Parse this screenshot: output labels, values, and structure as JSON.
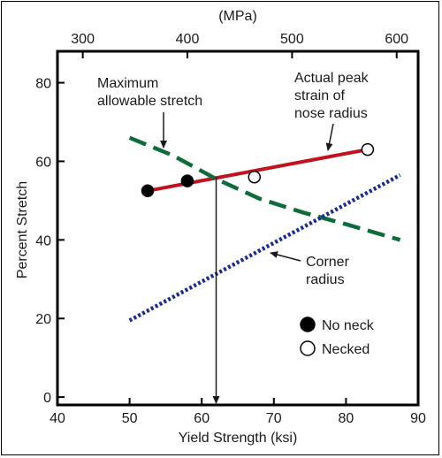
{
  "chart_data": {
    "type": "line",
    "title": "",
    "xlabel": "Yield Strength (ksi)",
    "ylabel": "Percent Stretch",
    "x2label": "(MPa)",
    "xlim": [
      40,
      90
    ],
    "ylim": [
      -2,
      88
    ],
    "x2lim": [
      275.8,
      620.5
    ],
    "xticks": [
      40,
      50,
      60,
      70,
      80,
      90
    ],
    "yticks": [
      0,
      20,
      40,
      60,
      80
    ],
    "x2ticks": [
      300,
      400,
      500,
      600
    ],
    "series": [
      {
        "name": "Actual peak strain of nose radius",
        "color": "#c0121f",
        "style": "solid",
        "x": [
          52.5,
          83
        ],
        "y": [
          52.5,
          63
        ]
      },
      {
        "name": "Maximum allowable stretch",
        "color": "#0e6b3a",
        "style": "dashed",
        "x": [
          50,
          56,
          62,
          68,
          74,
          80,
          87.5
        ],
        "y": [
          66,
          61.5,
          55.5,
          50.5,
          47,
          44,
          40
        ]
      },
      {
        "name": "Corner radius",
        "color": "#1b2a94",
        "style": "dotted",
        "x": [
          50,
          87.5
        ],
        "y": [
          19.5,
          56.5
        ]
      }
    ],
    "points": [
      {
        "x": 52.5,
        "y": 52.5,
        "kind": "No neck"
      },
      {
        "x": 58,
        "y": 55,
        "kind": "No neck"
      },
      {
        "x": 67.3,
        "y": 56,
        "kind": "Necked"
      },
      {
        "x": 83,
        "y": 63,
        "kind": "Necked"
      }
    ],
    "vertical_arrow": {
      "x": 62,
      "y_from": 56,
      "y_to": -2
    },
    "annotations": [
      {
        "id": "max-stretch",
        "lines": [
          "Maximum",
          "allowable stretch"
        ]
      },
      {
        "id": "peak-strain",
        "lines": [
          "Actual peak",
          "strain of",
          "nose radius"
        ]
      },
      {
        "id": "corner",
        "lines": [
          "Corner",
          "radius"
        ]
      }
    ],
    "legend": {
      "placement": "lower-right",
      "entries": [
        {
          "label": "No neck",
          "marker": "filled-circle"
        },
        {
          "label": "Necked",
          "marker": "open-circle"
        }
      ]
    },
    "grid": false
  }
}
